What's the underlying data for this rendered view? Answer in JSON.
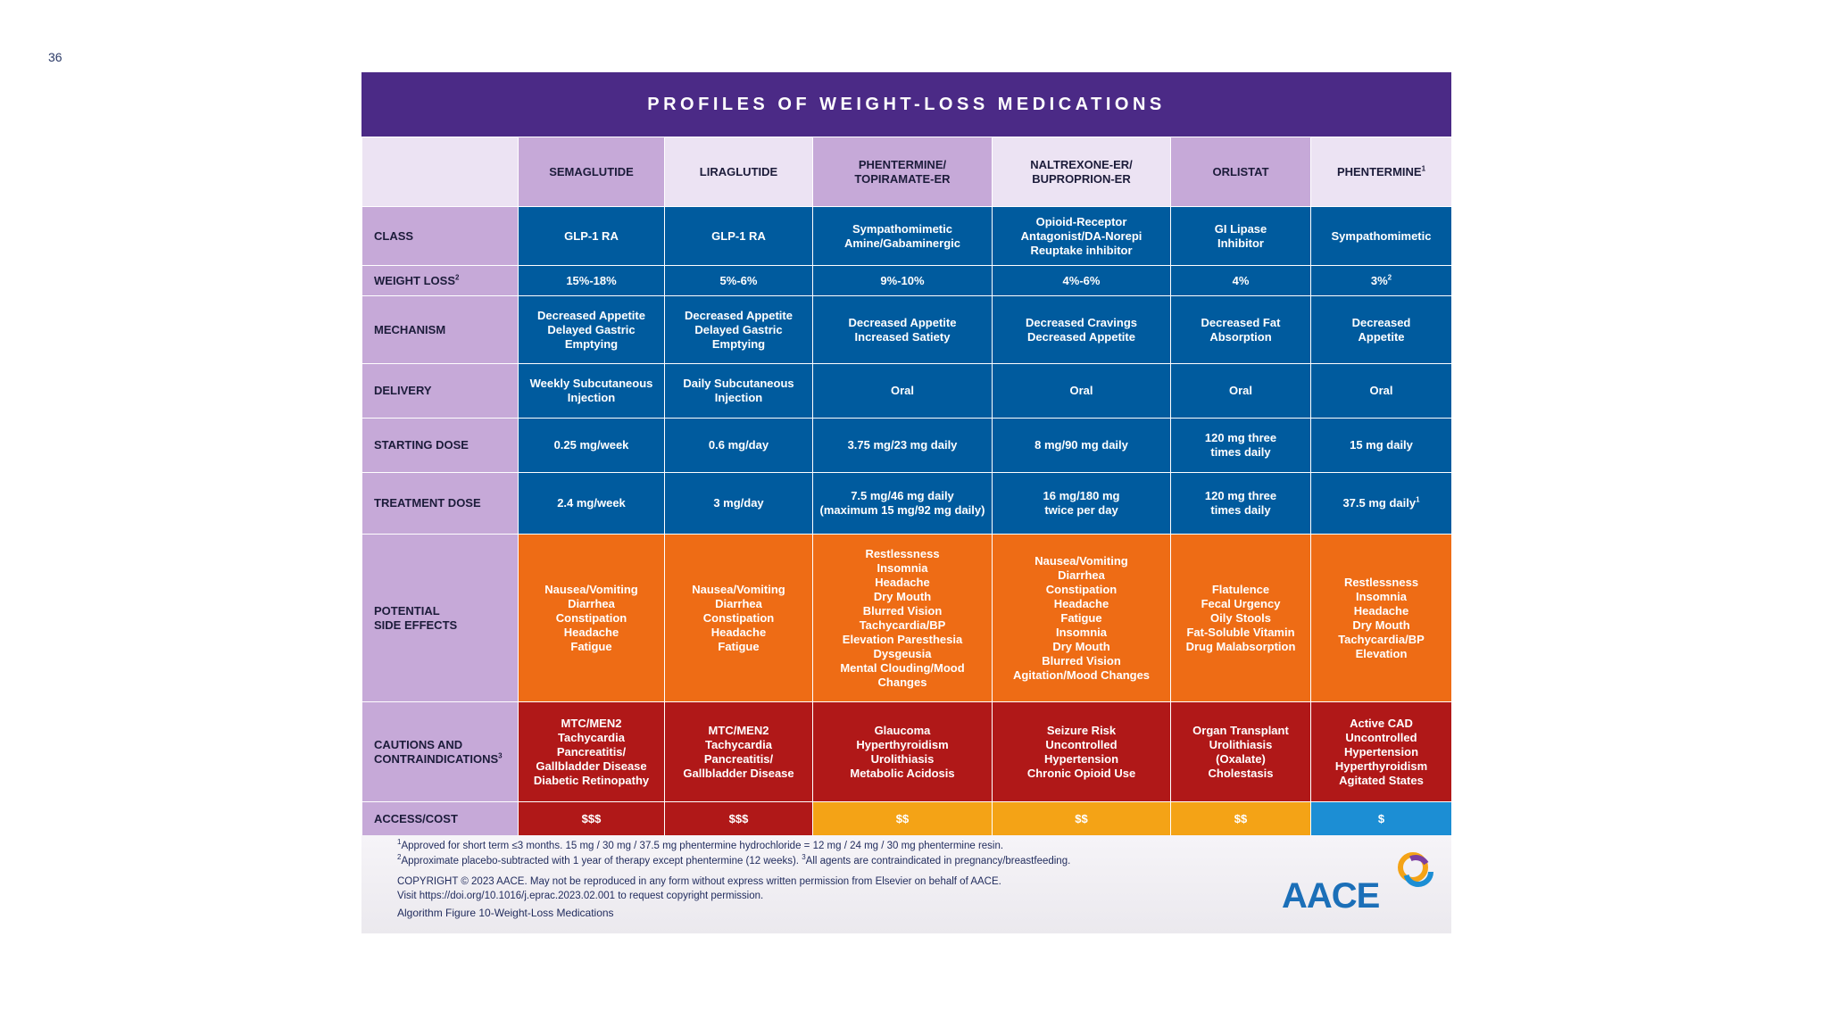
{
  "page_number": "36",
  "title": "PROFILES OF WEIGHT-LOSS MEDICATIONS",
  "columns": [
    {
      "name": "SEMAGLUTIDE",
      "sup": ""
    },
    {
      "name": "LIRAGLUTIDE",
      "sup": ""
    },
    {
      "name": "PHENTERMINE/\nTOPIRAMATE-ER",
      "sup": ""
    },
    {
      "name": "NALTREXONE-ER/\nBUPROPRION-ER",
      "sup": ""
    },
    {
      "name": "ORLISTAT",
      "sup": ""
    },
    {
      "name": "PHENTERMINE",
      "sup": "1"
    }
  ],
  "rows": [
    {
      "label": "CLASS",
      "label_sup": "",
      "color": "blue",
      "cells": [
        "GLP-1 RA",
        "GLP-1 RA",
        "Sympathomimetic\nAmine/Gabaminergic",
        "Opioid-Receptor\nAntagonist/DA-Norepi\nReuptake inhibitor",
        "GI Lipase\nInhibitor",
        "Sympathomimetic"
      ]
    },
    {
      "label": "WEIGHT LOSS",
      "label_sup": "2",
      "color": "blue",
      "cells": [
        "15%-18%",
        "5%-6%",
        "9%-10%",
        "4%-6%",
        "4%",
        "3%"
      ],
      "last_sup": "2"
    },
    {
      "label": "MECHANISM",
      "label_sup": "",
      "color": "blue",
      "cells": [
        "Decreased Appetite\nDelayed Gastric\nEmptying",
        "Decreased Appetite\nDelayed Gastric\nEmptying",
        "Decreased Appetite\nIncreased Satiety",
        "Decreased Cravings\nDecreased Appetite",
        "Decreased Fat\nAbsorption",
        "Decreased\nAppetite"
      ]
    },
    {
      "label": "DELIVERY",
      "label_sup": "",
      "color": "blue",
      "cells": [
        "Weekly Subcutaneous\nInjection",
        "Daily Subcutaneous\nInjection",
        "Oral",
        "Oral",
        "Oral",
        "Oral"
      ]
    },
    {
      "label": "STARTING DOSE",
      "label_sup": "",
      "color": "blue",
      "cells": [
        "0.25 mg/week",
        "0.6 mg/day",
        "3.75 mg/23 mg daily",
        "8 mg/90 mg daily",
        "120 mg three\ntimes daily",
        "15 mg daily"
      ]
    },
    {
      "label": "TREATMENT DOSE",
      "label_sup": "",
      "color": "blue",
      "cells": [
        "2.4 mg/week",
        "3 mg/day",
        "7.5 mg/46 mg daily\n(maximum 15 mg/92 mg daily)",
        "16 mg/180 mg\ntwice per day",
        "120 mg three\ntimes daily",
        "37.5 mg daily"
      ],
      "last_sup": "1"
    },
    {
      "label": "POTENTIAL\nSIDE EFFECTS",
      "label_sup": "",
      "color": "orange",
      "cells": [
        "Nausea/Vomiting\nDiarrhea\nConstipation\nHeadache\nFatigue",
        "Nausea/Vomiting\nDiarrhea\nConstipation\nHeadache\nFatigue",
        "Restlessness\nInsomnia\nHeadache\nDry Mouth\nBlurred Vision\nTachycardia/BP\nElevation Paresthesia\nDysgeusia\nMental Clouding/Mood\nChanges",
        "Nausea/Vomiting\nDiarrhea\nConstipation\nHeadache\nFatigue\nInsomnia\nDry Mouth\nBlurred Vision\nAgitation/Mood Changes",
        "Flatulence\nFecal Urgency\nOily Stools\nFat-Soluble Vitamin\nDrug Malabsorption",
        "Restlessness\nInsomnia\nHeadache\nDry Mouth\nTachycardia/BP\nElevation"
      ]
    },
    {
      "label": "CAUTIONS AND\nCONTRAINDICATIONS",
      "label_sup": "3",
      "color": "red",
      "cells": [
        "MTC/MEN2\nTachycardia\nPancreatitis/\nGallbladder Disease\nDiabetic Retinopathy",
        "MTC/MEN2\nTachycardia\nPancreatitis/\nGallbladder Disease",
        "Glaucoma\nHyperthyroidism\nUrolithiasis\nMetabolic Acidosis",
        "Seizure Risk\nUncontrolled\nHypertension\nChronic Opioid Use",
        "Organ Transplant\nUrolithiasis\n(Oxalate)\nCholestasis",
        "Active CAD\nUncontrolled\nHypertension\nHyperthyroidism\nAgitated States"
      ]
    },
    {
      "label": "ACCESS/COST",
      "label_sup": "",
      "color": "cost",
      "cells": [
        "$$$",
        "$$$",
        "$$",
        "$$",
        "$$",
        "$"
      ],
      "cell_colors": [
        "cost-red",
        "cost-red",
        "cost-amber",
        "cost-amber",
        "cost-amber",
        "cost-blue"
      ]
    }
  ],
  "footnotes": {
    "fn1_sup": "1",
    "fn1": "Approved for short term ≤3 months. 15 mg / 30 mg / 37.5 mg phentermine hydrochloride = 12 mg / 24 mg / 30 mg phentermine resin.",
    "fn2_sup": "2",
    "fn2a": "Approximate placebo-subtracted with 1 year of therapy except phentermine (12 weeks).",
    "fn3_sup": "3",
    "fn2b": "All agents are contraindicated in pregnancy/breastfeeding.",
    "copyright1": "COPYRIGHT © 2023 AACE. May not be reproduced in any form without express written permission from Elsevier on behalf of AACE.",
    "copyright2": "Visit https://doi.org/10.1016/j.eprac.2023.02.001 to request copyright permission.",
    "caption": "Algorithm Figure 10-Weight-Loss Medications"
  },
  "logo_text": "AACE",
  "colors": {
    "banner": "#4b2a86",
    "blue": "#005b9e",
    "orange": "#ee6c15",
    "red": "#b01818",
    "amber": "#f4a316",
    "light_blue": "#1c8ed4",
    "label_purple": "#c6a9d8"
  }
}
